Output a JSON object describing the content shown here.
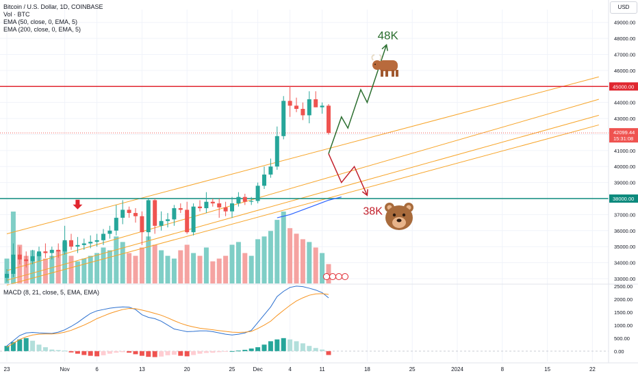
{
  "legend": {
    "symbol": "Bitcoin / U.S. Dollar, 1D, COINBASE",
    "volume": "Vol · BTC",
    "ema50": "EMA (50, close, 0, EMA, 5)",
    "ema200": "EMA (200, close, 0, EMA, 5)"
  },
  "macd_legend": "MACD (8, 21, close, 5, EMA, EMA)",
  "currency": "USD",
  "colors": {
    "up": "#26a69a",
    "down": "#ef5350",
    "volume_up": "#7fcec6",
    "volume_down": "#f5a3a1",
    "resistance": "#e0262f",
    "support": "#0c8a7d",
    "trendline": "#f7a428",
    "ema": "#2962ff",
    "macd_line": "#2a6fcf",
    "signal_line": "#f7931e",
    "bull_path": "#2b6e2f",
    "bear_path": "#c2202b"
  },
  "chart_data": {
    "type": "candlestick",
    "price_axis": {
      "ylim": [
        32700,
        49800
      ],
      "ticks": [
        33000,
        34000,
        35000,
        36000,
        37000,
        38000,
        39000,
        40000,
        41000,
        42000,
        43000,
        44000,
        45000,
        46000,
        47000,
        48000,
        49000
      ],
      "tick_labels": [
        "33000.00",
        "34000.00",
        "35000.00",
        "36000.00",
        "37000.00",
        "38000.00",
        "39000.00",
        "40000.00",
        "41000.00",
        "42000.00",
        "43000.00",
        "44000.00",
        "45000.00",
        "46000.00",
        "47000.00",
        "48000.00",
        "49000.00"
      ]
    },
    "x_axis": {
      "start_date": "2023-10-23",
      "end_date": "2024-01-23",
      "ticks": [
        {
          "day": 0,
          "label": "23"
        },
        {
          "day": 9,
          "label": "Nov"
        },
        {
          "day": 14,
          "label": "6"
        },
        {
          "day": 21,
          "label": "13"
        },
        {
          "day": 28,
          "label": "20"
        },
        {
          "day": 35,
          "label": "25"
        },
        {
          "day": 39,
          "label": "Dec"
        },
        {
          "day": 44,
          "label": "4"
        },
        {
          "day": 49,
          "label": "11"
        },
        {
          "day": 56,
          "label": "18"
        },
        {
          "day": 63,
          "label": "25"
        },
        {
          "day": 70,
          "label": "2024"
        },
        {
          "day": 77,
          "label": "8"
        },
        {
          "day": 84,
          "label": "15"
        },
        {
          "day": 91,
          "label": "22"
        }
      ]
    },
    "candles": [
      {
        "d": 0,
        "o": 33050,
        "h": 33600,
        "l": 32800,
        "c": 33300
      },
      {
        "d": 1,
        "o": 33300,
        "h": 35200,
        "l": 33100,
        "c": 34500
      },
      {
        "d": 2,
        "o": 34500,
        "h": 35000,
        "l": 33900,
        "c": 34200
      },
      {
        "d": 3,
        "o": 34200,
        "h": 34700,
        "l": 33700,
        "c": 34100
      },
      {
        "d": 4,
        "o": 34100,
        "h": 34800,
        "l": 33900,
        "c": 34400
      },
      {
        "d": 5,
        "o": 34400,
        "h": 35000,
        "l": 34100,
        "c": 34700
      },
      {
        "d": 6,
        "o": 34700,
        "h": 35200,
        "l": 34300,
        "c": 34600
      },
      {
        "d": 7,
        "o": 34600,
        "h": 35000,
        "l": 34200,
        "c": 34800
      },
      {
        "d": 8,
        "o": 34800,
        "h": 35200,
        "l": 34300,
        "c": 34700
      },
      {
        "d": 9,
        "o": 34700,
        "h": 36300,
        "l": 34500,
        "c": 35400
      },
      {
        "d": 10,
        "o": 35400,
        "h": 35800,
        "l": 34800,
        "c": 35000
      },
      {
        "d": 11,
        "o": 35000,
        "h": 35600,
        "l": 34600,
        "c": 35100
      },
      {
        "d": 12,
        "o": 35100,
        "h": 35500,
        "l": 34800,
        "c": 35200
      },
      {
        "d": 13,
        "o": 35200,
        "h": 35700,
        "l": 34900,
        "c": 35300
      },
      {
        "d": 14,
        "o": 35300,
        "h": 35800,
        "l": 35000,
        "c": 35400
      },
      {
        "d": 15,
        "o": 35400,
        "h": 36100,
        "l": 35100,
        "c": 35800
      },
      {
        "d": 16,
        "o": 35800,
        "h": 36300,
        "l": 35500,
        "c": 36000
      },
      {
        "d": 17,
        "o": 36000,
        "h": 37600,
        "l": 35700,
        "c": 36800
      },
      {
        "d": 18,
        "o": 36800,
        "h": 37900,
        "l": 36400,
        "c": 37300
      },
      {
        "d": 19,
        "o": 37300,
        "h": 37500,
        "l": 36800,
        "c": 37100
      },
      {
        "d": 20,
        "o": 37100,
        "h": 37400,
        "l": 36500,
        "c": 36900
      },
      {
        "d": 21,
        "o": 36900,
        "h": 37200,
        "l": 35100,
        "c": 35900
      },
      {
        "d": 22,
        "o": 35900,
        "h": 38000,
        "l": 35400,
        "c": 37900
      },
      {
        "d": 23,
        "o": 37900,
        "h": 38000,
        "l": 35800,
        "c": 36300
      },
      {
        "d": 24,
        "o": 36300,
        "h": 37200,
        "l": 36000,
        "c": 36600
      },
      {
        "d": 25,
        "o": 36600,
        "h": 37100,
        "l": 36200,
        "c": 36700
      },
      {
        "d": 26,
        "o": 36700,
        "h": 37600,
        "l": 36300,
        "c": 37400
      },
      {
        "d": 27,
        "o": 37400,
        "h": 37700,
        "l": 37100,
        "c": 37300
      },
      {
        "d": 28,
        "o": 37300,
        "h": 37800,
        "l": 35800,
        "c": 35900
      },
      {
        "d": 29,
        "o": 35900,
        "h": 37700,
        "l": 35700,
        "c": 37500
      },
      {
        "d": 30,
        "o": 37500,
        "h": 37900,
        "l": 37200,
        "c": 37400
      },
      {
        "d": 31,
        "o": 37400,
        "h": 38400,
        "l": 37100,
        "c": 37800
      },
      {
        "d": 32,
        "o": 37800,
        "h": 38000,
        "l": 37500,
        "c": 37700
      },
      {
        "d": 33,
        "o": 37700,
        "h": 38000,
        "l": 36800,
        "c": 37450
      },
      {
        "d": 34,
        "o": 37450,
        "h": 37800,
        "l": 36900,
        "c": 37200
      },
      {
        "d": 35,
        "o": 37200,
        "h": 38100,
        "l": 36800,
        "c": 37700
      },
      {
        "d": 36,
        "o": 37700,
        "h": 38400,
        "l": 37500,
        "c": 38100
      },
      {
        "d": 37,
        "o": 38100,
        "h": 38300,
        "l": 37600,
        "c": 37800
      },
      {
        "d": 38,
        "o": 37800,
        "h": 38100,
        "l": 37600,
        "c": 37850
      },
      {
        "d": 39,
        "o": 37850,
        "h": 39000,
        "l": 37700,
        "c": 38800
      },
      {
        "d": 40,
        "o": 38800,
        "h": 40000,
        "l": 38600,
        "c": 39500
      },
      {
        "d": 41,
        "o": 39500,
        "h": 40500,
        "l": 39300,
        "c": 40000
      },
      {
        "d": 42,
        "o": 40000,
        "h": 42500,
        "l": 39800,
        "c": 41900
      },
      {
        "d": 43,
        "o": 41900,
        "h": 44400,
        "l": 41700,
        "c": 44100
      },
      {
        "d": 44,
        "o": 44100,
        "h": 45000,
        "l": 43100,
        "c": 43800
      },
      {
        "d": 45,
        "o": 43800,
        "h": 44300,
        "l": 43400,
        "c": 43600
      },
      {
        "d": 46,
        "o": 43600,
        "h": 44000,
        "l": 42900,
        "c": 43200
      },
      {
        "d": 47,
        "o": 43200,
        "h": 44700,
        "l": 42700,
        "c": 44200
      },
      {
        "d": 48,
        "o": 44200,
        "h": 44700,
        "l": 43700,
        "c": 43700
      },
      {
        "d": 49,
        "o": 43700,
        "h": 44000,
        "l": 43300,
        "c": 43800
      },
      {
        "d": 50,
        "o": 43800,
        "h": 43900,
        "l": 42000,
        "c": 42099.44
      }
    ],
    "volume": [
      9,
      26,
      14,
      10,
      12,
      11,
      9,
      10,
      12,
      15,
      10,
      8,
      9,
      10,
      11,
      13,
      12,
      17,
      15,
      11,
      10,
      13,
      17,
      14,
      12,
      10,
      9,
      12,
      14,
      11,
      10,
      13,
      8,
      9,
      10,
      14,
      15,
      11,
      10,
      16,
      17,
      19,
      23,
      26,
      20,
      18,
      16,
      15,
      13,
      11,
      7
    ],
    "ema50": [
      [
        42,
        36800
      ],
      [
        44,
        37000
      ],
      [
        46,
        37300
      ],
      [
        48,
        37600
      ],
      [
        50,
        37900
      ],
      [
        52,
        38100
      ]
    ],
    "macd_axis": {
      "ylim": [
        -400,
        2550
      ],
      "ticks": [
        0,
        500,
        1000,
        1500,
        2000,
        2500
      ],
      "tick_labels": [
        "0.00",
        "500.00",
        "1000.00",
        "1500.00",
        "2000.00",
        "2500.00"
      ]
    },
    "macd": [
      200,
      400,
      600,
      700,
      720,
      700,
      690,
      680,
      730,
      820,
      950,
      1100,
      1280,
      1450,
      1550,
      1600,
      1650,
      1680,
      1700,
      1690,
      1600,
      1400,
      1300,
      1250,
      1150,
      1000,
      850,
      800,
      750,
      760,
      780,
      780,
      750,
      700,
      650,
      620,
      650,
      700,
      800,
      1100,
      1400,
      1700,
      2100,
      2300,
      2450,
      2500,
      2480,
      2420,
      2350,
      2250,
      2050
    ],
    "signal": [
      150,
      300,
      450,
      550,
      620,
      650,
      660,
      660,
      680,
      730,
      800,
      900,
      1000,
      1120,
      1250,
      1350,
      1450,
      1530,
      1600,
      1640,
      1630,
      1580,
      1520,
      1450,
      1380,
      1280,
      1170,
      1070,
      990,
      930,
      880,
      850,
      820,
      790,
      760,
      730,
      720,
      730,
      760,
      870,
      1000,
      1150,
      1370,
      1570,
      1760,
      1930,
      2050,
      2150,
      2200,
      2210,
      2180
    ],
    "histogram": [
      200,
      350,
      450,
      500,
      400,
      250,
      150,
      60,
      40,
      20,
      -50,
      -100,
      -150,
      -180,
      -200,
      -160,
      -100,
      -60,
      -40,
      -60,
      -120,
      -180,
      -220,
      -230,
      -210,
      -160,
      -140,
      -180,
      -200,
      -150,
      -100,
      -70,
      -60,
      -40,
      -20,
      0,
      20,
      50,
      100,
      150,
      250,
      380,
      450,
      500,
      450,
      380,
      300,
      200,
      120,
      60,
      -150
    ],
    "horizontal_levels": [
      {
        "value": 45000,
        "label": "45000.00",
        "color": "#e0262f"
      },
      {
        "value": 38000,
        "label": "38000.00",
        "color": "#0c8a7d"
      }
    ],
    "current_price": {
      "value": 42099.44,
      "label": "42099.44",
      "countdown": "15:31:08"
    },
    "trendlines": [
      {
        "from": [
          0,
          35800
        ],
        "to": [
          92,
          45600
        ]
      },
      {
        "from": [
          0,
          33500
        ],
        "to": [
          92,
          44200
        ]
      },
      {
        "from": [
          0,
          32900
        ],
        "to": [
          92,
          43200
        ]
      },
      {
        "from": [
          0,
          32600
        ],
        "to": [
          92,
          42600
        ]
      }
    ],
    "bull_scenario": {
      "label": "48K",
      "path": [
        [
          50,
          40800
        ],
        [
          52,
          43100
        ],
        [
          53,
          42400
        ],
        [
          55,
          44800
        ],
        [
          56,
          44000
        ],
        [
          59,
          47600
        ]
      ]
    },
    "bear_scenario": {
      "label": "38K",
      "path": [
        [
          50,
          40800
        ],
        [
          52,
          39000
        ],
        [
          54,
          40000
        ],
        [
          56,
          38200
        ]
      ]
    },
    "annotations": [
      {
        "type": "arrow-down",
        "day": 11,
        "value": 37500
      }
    ],
    "bull_icon": "bull-icon",
    "bear_icon": "bear-icon"
  }
}
